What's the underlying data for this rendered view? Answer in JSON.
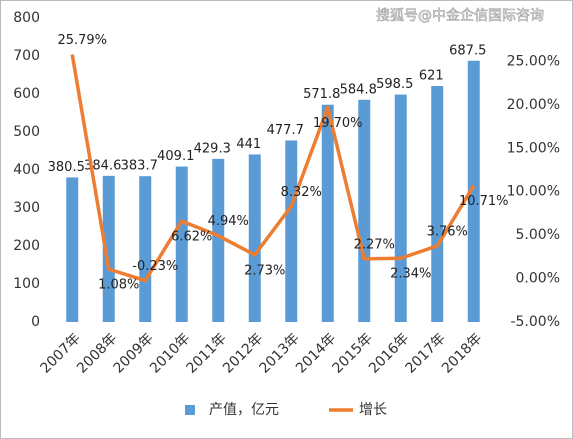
{
  "chart_data": {
    "type": "bar_line",
    "watermark": "搜狐号@中金企信国际咨询",
    "categories": [
      "2007年",
      "2008年",
      "2009年",
      "2010年",
      "2011年",
      "2012年",
      "2013年",
      "2014年",
      "2015年",
      "2016年",
      "2017年",
      "2018年"
    ],
    "series": [
      {
        "name": "产值，亿元",
        "type": "bar",
        "color": "#5b9bd5",
        "values": [
          380.5,
          384.6,
          383.7,
          409.1,
          429.3,
          441,
          477.7,
          571.8,
          584.8,
          598.5,
          621,
          687.5
        ]
      },
      {
        "name": "增长",
        "type": "line",
        "axis": "y2",
        "color": "#ed7d31",
        "values": [
          25.79,
          1.08,
          -0.23,
          6.62,
          4.94,
          2.73,
          8.32,
          19.7,
          2.27,
          2.34,
          3.76,
          10.71
        ],
        "value_labels": [
          "25.79%",
          "1.08%",
          "-0.23%",
          "6.62%",
          "4.94%",
          "2.73%",
          "8.32%",
          "19.70%",
          "2.27%",
          "2.34%",
          "3.76%",
          "10.71%"
        ]
      }
    ],
    "ylim": [
      0,
      800
    ],
    "yticks": [
      0,
      100,
      200,
      300,
      400,
      500,
      600,
      700,
      800
    ],
    "y2lim": [
      -5,
      30
    ],
    "y2ticks": [
      {
        "value": -5,
        "label": "-5.00%"
      },
      {
        "value": 0,
        "label": "0.00%"
      },
      {
        "value": 5,
        "label": "5.00%"
      },
      {
        "value": 10,
        "label": "10.00%"
      },
      {
        "value": 15,
        "label": "15.00%"
      },
      {
        "value": 20,
        "label": "20.00%"
      },
      {
        "value": 25,
        "label": "25.00%"
      }
    ],
    "legend": "bottom"
  }
}
